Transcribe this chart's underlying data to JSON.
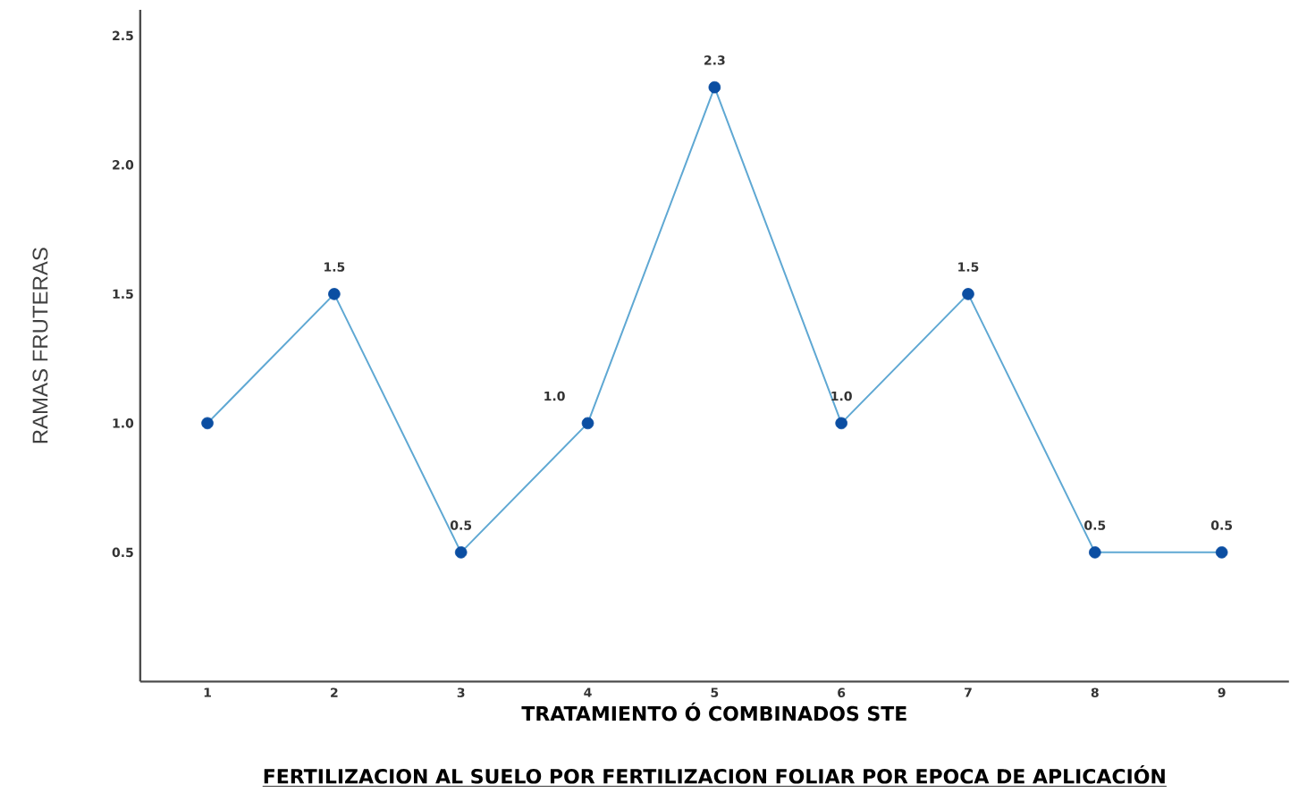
{
  "chart_data": {
    "type": "line",
    "xlabel": "TRATAMIENTO Ó COMBINADOS STE",
    "ylabel": "RAMAS FRUTERAS",
    "annotations": [
      "FERTILIZACION AL SUELO POR FERTILIZACION FOLIAR POR EPOCA DE APLICACIÓN"
    ],
    "categories": [
      "1",
      "2",
      "3",
      "4",
      "5",
      "6",
      "7",
      "8",
      "9"
    ],
    "series": [
      {
        "color": "#5fa8d3",
        "colors": [
          "#0b4ea2",
          "#0b4ea2",
          "#0b4ea2",
          "#0b4ea2",
          "#0b4ea2",
          "#0b4ea2",
          "#0b4ea2",
          "#0b4ea2",
          "#0b4ea2"
        ],
        "values": [
          1.0,
          1.5,
          0.5,
          1.0,
          2.3,
          1.0,
          1.5,
          0.5,
          0.5
        ],
        "value_labels": [
          null,
          "1.5",
          "0.5",
          "1.0",
          "2.3",
          "1.0",
          "1.5",
          "0.5",
          "0.5"
        ]
      }
    ],
    "ylim": [
      0,
      2.6
    ],
    "yticks": [
      0.5,
      {
        "value": 1,
        "label": "1.0"
      },
      1.5,
      {
        "value": 2,
        "label": "2.0"
      },
      2.5
    ],
    "marker": "circle",
    "line_style": "solid",
    "grid": false
  }
}
